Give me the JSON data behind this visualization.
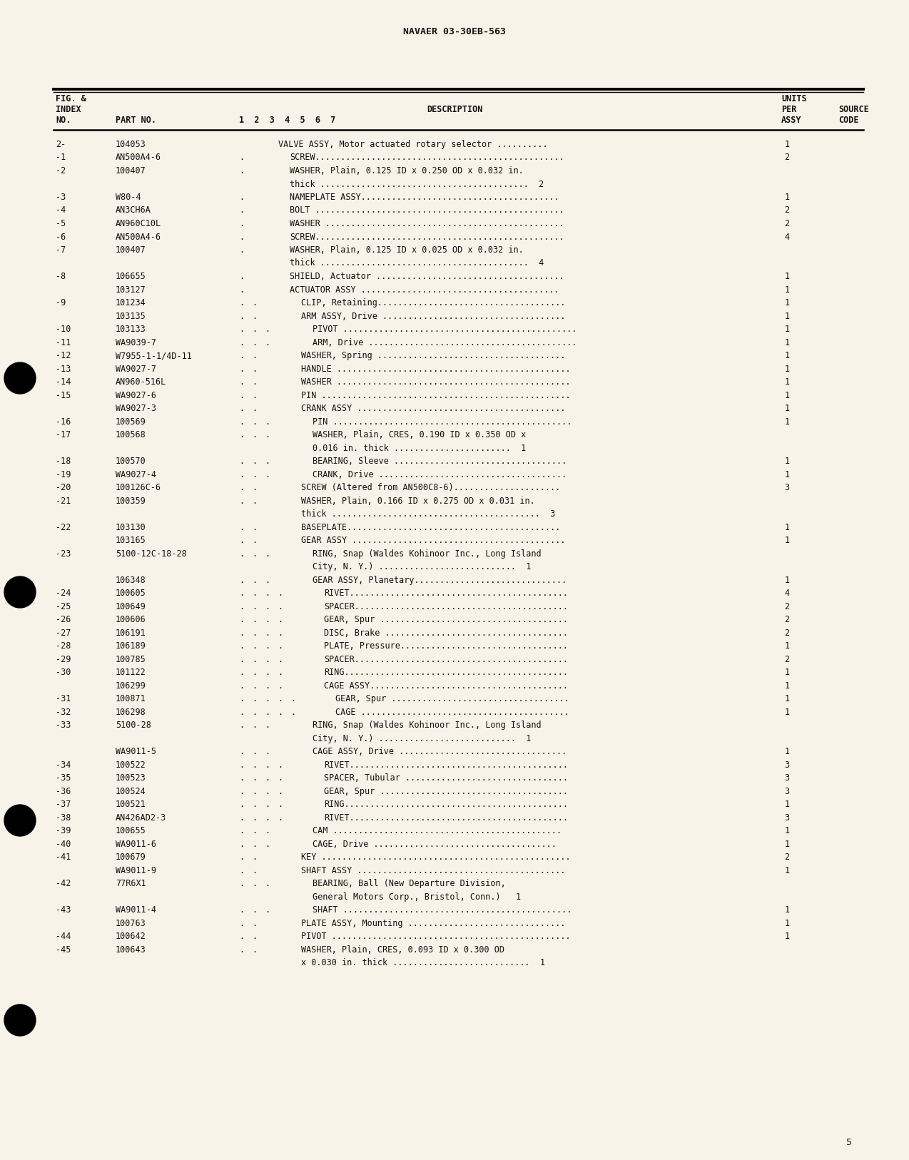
{
  "page_title": "NAVAER 03-30EB-563",
  "page_number": "5",
  "bg_color": "#F7F3E8",
  "rows": [
    {
      "fig": "2-",
      "part": "104053",
      "indent": 0,
      "desc": "VALVE ASSY, Motor actuated rotary selector ..........",
      "qty": "1"
    },
    {
      "fig": "-1",
      "part": "AN500A4-6",
      "indent": 1,
      "desc": "SCREW.................................................",
      "qty": "2"
    },
    {
      "fig": "-2",
      "part": "100407",
      "indent": 1,
      "desc": "WASHER, Plain, 0.125 ID x 0.250 OD x 0.032 in.",
      "qty": "",
      "extra": "       thick .........................................  2"
    },
    {
      "fig": "-3",
      "part": "W80-4",
      "indent": 1,
      "desc": "NAMEPLATE ASSY.......................................",
      "qty": "1"
    },
    {
      "fig": "-4",
      "part": "AN3CH6A",
      "indent": 1,
      "desc": "BOLT .................................................",
      "qty": "2"
    },
    {
      "fig": "-5",
      "part": "AN960C10L",
      "indent": 1,
      "desc": "WASHER ...............................................",
      "qty": "2"
    },
    {
      "fig": "-6",
      "part": "AN500A4-6",
      "indent": 1,
      "desc": "SCREW.................................................",
      "qty": "4"
    },
    {
      "fig": "-7",
      "part": "100407",
      "indent": 1,
      "desc": "WASHER, Plain, 0.125 ID x 0.025 OD x 0.032 in.",
      "qty": "",
      "extra": "       thick .........................................  4"
    },
    {
      "fig": "-8",
      "part": "106655",
      "indent": 1,
      "desc": "SHIELD, Actuator .....................................",
      "qty": "1"
    },
    {
      "fig": "",
      "part": "103127",
      "indent": 1,
      "desc": "ACTUATOR ASSY .......................................",
      "qty": "1"
    },
    {
      "fig": "-9",
      "part": "101234",
      "indent": 2,
      "desc": "CLIP, Retaining.....................................",
      "qty": "1"
    },
    {
      "fig": "",
      "part": "103135",
      "indent": 2,
      "desc": "ARM ASSY, Drive ....................................",
      "qty": "1"
    },
    {
      "fig": "-10",
      "part": "103133",
      "indent": 3,
      "desc": "PIVOT ..............................................",
      "qty": "1"
    },
    {
      "fig": "-11",
      "part": "WA9039-7",
      "indent": 3,
      "desc": "ARM, Drive .........................................",
      "qty": "1"
    },
    {
      "fig": "-12",
      "part": "W7955-1-1/4D-11",
      "indent": 2,
      "desc": "WASHER, Spring .....................................",
      "qty": "1"
    },
    {
      "fig": "-13",
      "part": "WA9027-7",
      "indent": 2,
      "desc": "HANDLE ..............................................",
      "qty": "1"
    },
    {
      "fig": "-14",
      "part": "AN960-516L",
      "indent": 2,
      "desc": "WASHER ..............................................",
      "qty": "1"
    },
    {
      "fig": "-15",
      "part": "WA9027-6",
      "indent": 2,
      "desc": "PIN .................................................",
      "qty": "1"
    },
    {
      "fig": "",
      "part": "WA9027-3",
      "indent": 2,
      "desc": "CRANK ASSY .........................................",
      "qty": "1"
    },
    {
      "fig": "-16",
      "part": "100569",
      "indent": 3,
      "desc": "PIN ...............................................",
      "qty": "1"
    },
    {
      "fig": "-17",
      "part": "100568",
      "indent": 3,
      "desc": "WASHER, Plain, CRES, 0.190 ID x 0.350 OD x",
      "qty": "",
      "extra": "             0.016 in. thick .......................  1"
    },
    {
      "fig": "-18",
      "part": "100570",
      "indent": 3,
      "desc": "BEARING, Sleeve ..................................",
      "qty": "1"
    },
    {
      "fig": "-19",
      "part": "WA9027-4",
      "indent": 3,
      "desc": "CRANK, Drive .....................................",
      "qty": "1"
    },
    {
      "fig": "-20",
      "part": "100126C-6",
      "indent": 2,
      "desc": "SCREW (Altered from AN500C8-6).....................",
      "qty": "3"
    },
    {
      "fig": "-21",
      "part": "100359",
      "indent": 2,
      "desc": "WASHER, Plain, 0.166 ID x 0.275 OD x 0.031 in.",
      "qty": "",
      "extra": "       thick .........................................  3"
    },
    {
      "fig": "-22",
      "part": "103130",
      "indent": 2,
      "desc": "BASEPLATE..........................................",
      "qty": "1"
    },
    {
      "fig": "",
      "part": "103165",
      "indent": 2,
      "desc": "GEAR ASSY ..........................................",
      "qty": "1"
    },
    {
      "fig": "-23",
      "part": "5100-12C-18-28",
      "indent": 3,
      "desc": "RING, Snap (Waldes Kohinoor Inc., Long Island",
      "qty": "",
      "extra": "             City, N. Y.) ...........................  1"
    },
    {
      "fig": "",
      "part": "106348",
      "indent": 3,
      "desc": "GEAR ASSY, Planetary..............................",
      "qty": "1"
    },
    {
      "fig": "-24",
      "part": "100605",
      "indent": 4,
      "desc": "RIVET...........................................",
      "qty": "4"
    },
    {
      "fig": "-25",
      "part": "100649",
      "indent": 4,
      "desc": "SPACER..........................................",
      "qty": "2"
    },
    {
      "fig": "-26",
      "part": "100606",
      "indent": 4,
      "desc": "GEAR, Spur .....................................",
      "qty": "2"
    },
    {
      "fig": "-27",
      "part": "106191",
      "indent": 4,
      "desc": "DISC, Brake ....................................",
      "qty": "2"
    },
    {
      "fig": "-28",
      "part": "106189",
      "indent": 4,
      "desc": "PLATE, Pressure.................................",
      "qty": "1"
    },
    {
      "fig": "-29",
      "part": "100785",
      "indent": 4,
      "desc": "SPACER..........................................",
      "qty": "2"
    },
    {
      "fig": "-30",
      "part": "101122",
      "indent": 4,
      "desc": "RING............................................",
      "qty": "1"
    },
    {
      "fig": "",
      "part": "106299",
      "indent": 4,
      "desc": "CAGE ASSY.......................................",
      "qty": "1"
    },
    {
      "fig": "-31",
      "part": "100871",
      "indent": 5,
      "desc": "GEAR, Spur ...................................",
      "qty": "1"
    },
    {
      "fig": "-32",
      "part": "106298",
      "indent": 5,
      "desc": "CAGE .........................................",
      "qty": "1"
    },
    {
      "fig": "-33",
      "part": "5100-28",
      "indent": 3,
      "desc": "RING, Snap (Waldes Kohinoor Inc., Long Island",
      "qty": "",
      "extra": "             City, N. Y.) ...........................  1"
    },
    {
      "fig": "",
      "part": "WA9011-5",
      "indent": 3,
      "desc": "CAGE ASSY, Drive .................................",
      "qty": "1"
    },
    {
      "fig": "-34",
      "part": "100522",
      "indent": 4,
      "desc": "RIVET...........................................",
      "qty": "3"
    },
    {
      "fig": "-35",
      "part": "100523",
      "indent": 4,
      "desc": "SPACER, Tubular ................................",
      "qty": "3"
    },
    {
      "fig": "-36",
      "part": "100524",
      "indent": 4,
      "desc": "GEAR, Spur .....................................",
      "qty": "3"
    },
    {
      "fig": "-37",
      "part": "100521",
      "indent": 4,
      "desc": "RING............................................",
      "qty": "1"
    },
    {
      "fig": "-38",
      "part": "AN426AD2-3",
      "indent": 4,
      "desc": "RIVET...........................................",
      "qty": "3"
    },
    {
      "fig": "-39",
      "part": "100655",
      "indent": 3,
      "desc": "CAM .............................................",
      "qty": "1"
    },
    {
      "fig": "-40",
      "part": "WA9011-6",
      "indent": 3,
      "desc": "CAGE, Drive ....................................",
      "qty": "1"
    },
    {
      "fig": "-41",
      "part": "100679",
      "indent": 2,
      "desc": "KEY .................................................",
      "qty": "2"
    },
    {
      "fig": "",
      "part": "WA9011-9",
      "indent": 2,
      "desc": "SHAFT ASSY .........................................",
      "qty": "1"
    },
    {
      "fig": "-42",
      "part": "77R6X1",
      "indent": 3,
      "desc": "BEARING, Ball (New Departure Division,",
      "qty": "",
      "extra": "             General Motors Corp., Bristol, Conn.)   1"
    },
    {
      "fig": "-43",
      "part": "WA9011-4",
      "indent": 3,
      "desc": "SHAFT .............................................",
      "qty": "1"
    },
    {
      "fig": "",
      "part": "100763",
      "indent": 2,
      "desc": "PLATE ASSY, Mounting ...............................",
      "qty": "1"
    },
    {
      "fig": "-44",
      "part": "100642",
      "indent": 2,
      "desc": "PIVOT ...............................................",
      "qty": "1"
    },
    {
      "fig": "-45",
      "part": "100643",
      "indent": 2,
      "desc": "WASHER, Plain, CRES, 0.093 ID x 0.300 OD",
      "qty": "",
      "extra": "       x 0.030 in. thick ...........................  1"
    }
  ]
}
